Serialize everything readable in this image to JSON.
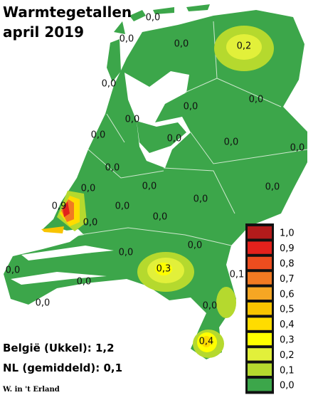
{
  "title": [
    "Warmtegetallen",
    "april  2019"
  ],
  "labels": [
    "0,0",
    "0,0",
    "0,0",
    "0,2",
    "0,0",
    "0,0",
    "0,0",
    "0,0",
    "0,0",
    "0,0",
    "0,0",
    "0,0",
    "0,0",
    "0,0",
    "0,0",
    "0,0",
    "0,9",
    "0,0",
    "0,0",
    "0,0",
    "0,0",
    "0,0",
    "0,0",
    "0,3",
    "0,1",
    "0,0",
    "0,0",
    "0,0",
    "0,0",
    "0,4"
  ],
  "legend": [
    {
      "label": "1,0",
      "color": "#b31b1b"
    },
    {
      "label": "0,9",
      "color": "#e3211c"
    },
    {
      "label": "0,8",
      "color": "#ec4d1f"
    },
    {
      "label": "0,7",
      "color": "#f17a22"
    },
    {
      "label": "0,6",
      "color": "#f6a623"
    },
    {
      "label": "0,5",
      "color": "#f8c400"
    },
    {
      "label": "0,4",
      "color": "#ffdc00"
    },
    {
      "label": "0,3",
      "color": "#ffff00"
    },
    {
      "label": "0,2",
      "color": "#e2f03a"
    },
    {
      "label": "0,1",
      "color": "#b5d92e"
    },
    {
      "label": "0,0",
      "color": "#3ca64a"
    }
  ],
  "notes": [
    "België (Ukkel): 1,2",
    "NL (gemiddeld): 0,1"
  ],
  "credit": "W. in 't Erland"
}
